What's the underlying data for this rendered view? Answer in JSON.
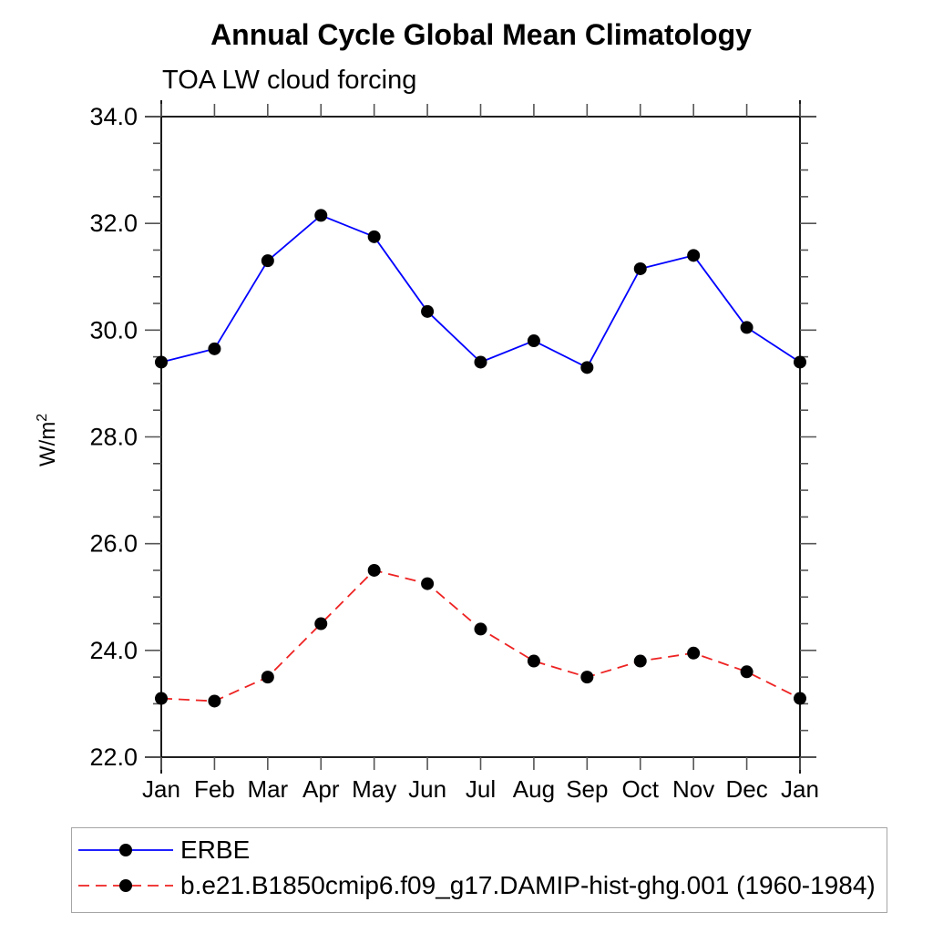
{
  "chart_data": {
    "type": "line",
    "title": "Annual Cycle Global Mean Climatology",
    "subtitle": "TOA LW cloud forcing",
    "ylabel": "W/m",
    "ylabel_superscript": "2",
    "categories": [
      "Jan",
      "Feb",
      "Mar",
      "Apr",
      "May",
      "Jun",
      "Jul",
      "Aug",
      "Sep",
      "Oct",
      "Nov",
      "Dec",
      "Jan"
    ],
    "ylim": [
      22.0,
      34.0
    ],
    "ytick_major_step": 2.0,
    "ytick_minor_step": 0.5,
    "ytick_labels": [
      "22.0",
      "24.0",
      "26.0",
      "28.0",
      "30.0",
      "32.0",
      "34.0"
    ],
    "grid": false,
    "legend_position": "bottom-left",
    "frame_color": "#000000",
    "tick_color": "#555555",
    "series": [
      {
        "name": "ERBE",
        "color": "#0000ff",
        "line_style": "solid",
        "marker": "filled-circle",
        "marker_color": "#000000",
        "values": [
          29.4,
          29.65,
          31.3,
          32.15,
          31.75,
          30.35,
          29.4,
          29.8,
          29.3,
          31.15,
          31.4,
          30.05,
          29.4
        ]
      },
      {
        "name": "b.e21.B1850cmip6.f09_g17.DAMIP-hist-ghg.001 (1960-1984)",
        "color": "#ee2222",
        "line_style": "dashed",
        "marker": "filled-circle",
        "marker_color": "#000000",
        "values": [
          23.1,
          23.05,
          23.5,
          24.5,
          25.5,
          25.25,
          24.4,
          23.8,
          23.5,
          23.8,
          23.95,
          23.6,
          23.1
        ]
      }
    ]
  }
}
